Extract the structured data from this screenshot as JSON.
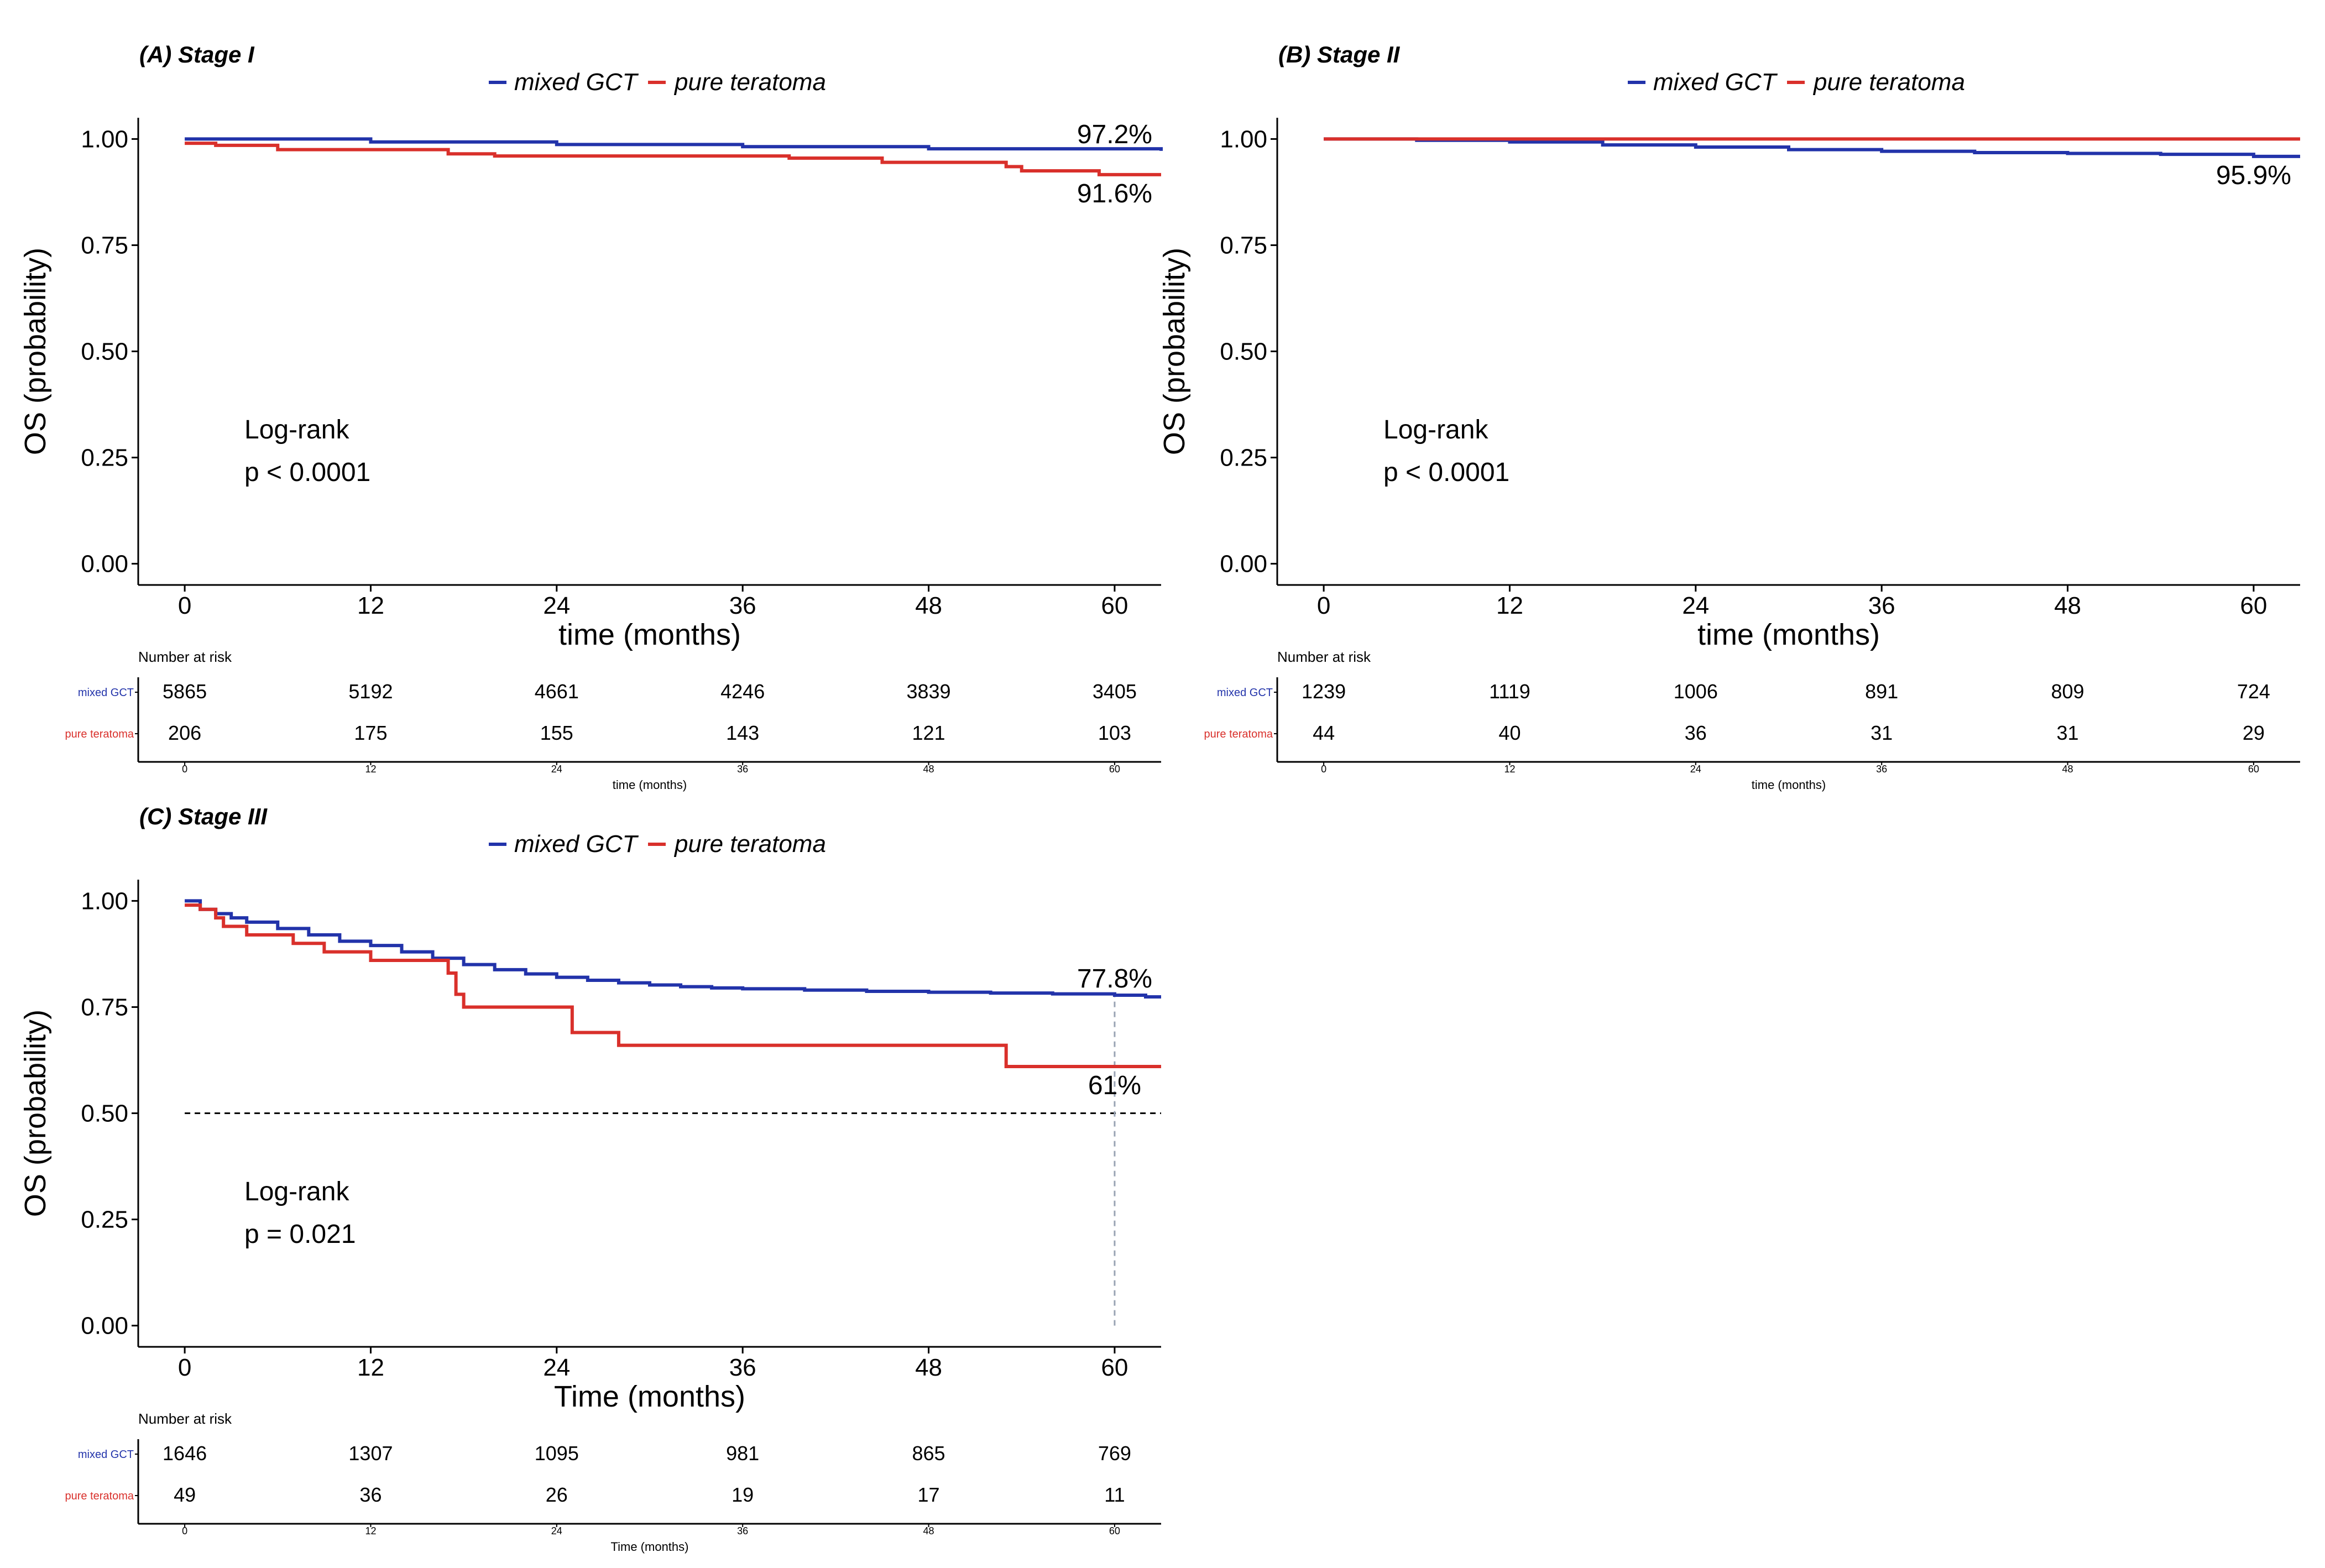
{
  "colors": {
    "mixed": "#2233aa",
    "pure": "#d9302b",
    "axis": "#000000",
    "ref": "#9aa4b4"
  },
  "chart_data": [
    {
      "id": "A",
      "type": "line",
      "subtype": "kaplan-meier",
      "title": "(A) Stage I",
      "legend": [
        "mixed GCT",
        "pure teratoma"
      ],
      "xlabel": "time (months)",
      "ylabel": "OS (probability)",
      "xlim": [
        -3,
        63
      ],
      "ylim": [
        -0.05,
        1.05
      ],
      "xticks": [
        0,
        12,
        24,
        36,
        48,
        60
      ],
      "yticks": [
        0,
        0.25,
        0.5,
        0.75,
        1.0
      ],
      "ytick_labels": [
        "0.00",
        "0.25",
        "0.50",
        "0.75",
        "1.00"
      ],
      "series": [
        {
          "name": "mixed GCT",
          "color_key": "mixed",
          "x": [
            0,
            12,
            24,
            36,
            48,
            63
          ],
          "y": [
            1.0,
            0.993,
            0.987,
            0.982,
            0.977,
            0.972
          ]
        },
        {
          "name": "pure teratoma",
          "color_key": "pure",
          "x": [
            0,
            2,
            6,
            17,
            20,
            39,
            45,
            53,
            54,
            59,
            63
          ],
          "y": [
            0.99,
            0.985,
            0.975,
            0.965,
            0.96,
            0.955,
            0.945,
            0.935,
            0.925,
            0.916,
            0.916
          ]
        }
      ],
      "end_labels": [
        {
          "text": "97.2%",
          "x": 60,
          "y": 0.972,
          "pos": "above"
        },
        {
          "text": "91.6%",
          "x": 60,
          "y": 0.916,
          "pos": "below"
        }
      ],
      "logrank_title": "Log-rank",
      "pvalue": "p < 0.0001",
      "risk_table": {
        "header": "Number at risk",
        "groups": [
          "mixed GCT",
          "pure teratoma"
        ],
        "values": [
          [
            5865,
            5192,
            4661,
            4246,
            3839,
            3405
          ],
          [
            206,
            175,
            155,
            143,
            121,
            103
          ]
        ],
        "xlabel": "time (months)"
      }
    },
    {
      "id": "B",
      "type": "line",
      "subtype": "kaplan-meier",
      "title": "(B) Stage II",
      "legend": [
        "mixed GCT",
        "pure teratoma"
      ],
      "xlabel": "time (months)",
      "ylabel": "OS (probability)",
      "xlim": [
        -3,
        63
      ],
      "ylim": [
        -0.05,
        1.05
      ],
      "xticks": [
        0,
        12,
        24,
        36,
        48,
        60
      ],
      "yticks": [
        0,
        0.25,
        0.5,
        0.75,
        1.0
      ],
      "ytick_labels": [
        "0.00",
        "0.25",
        "0.50",
        "0.75",
        "1.00"
      ],
      "series": [
        {
          "name": "mixed GCT",
          "color_key": "mixed",
          "x": [
            0,
            6,
            12,
            18,
            24,
            30,
            36,
            42,
            48,
            54,
            60,
            63
          ],
          "y": [
            1.0,
            0.997,
            0.993,
            0.986,
            0.981,
            0.975,
            0.971,
            0.968,
            0.966,
            0.964,
            0.959,
            0.959
          ]
        },
        {
          "name": "pure teratoma",
          "color_key": "pure",
          "x": [
            0,
            63
          ],
          "y": [
            1.0,
            1.0
          ]
        }
      ],
      "end_labels": [
        {
          "text": "95.9%",
          "x": 60,
          "y": 0.959,
          "pos": "below"
        }
      ],
      "logrank_title": "Log-rank",
      "pvalue": "p < 0.0001",
      "risk_table": {
        "header": "Number at risk",
        "groups": [
          "mixed GCT",
          "pure teratoma"
        ],
        "values": [
          [
            1239,
            1119,
            1006,
            891,
            809,
            724
          ],
          [
            44,
            40,
            36,
            31,
            31,
            29
          ]
        ],
        "xlabel": "time (months)"
      }
    },
    {
      "id": "C",
      "type": "line",
      "subtype": "kaplan-meier",
      "title": "(C) Stage III",
      "legend": [
        "mixed GCT",
        "pure teratoma"
      ],
      "xlabel": "Time (months)",
      "ylabel": "OS (probability)",
      "xlim": [
        -3,
        63
      ],
      "ylim": [
        -0.05,
        1.05
      ],
      "xticks": [
        0,
        12,
        24,
        36,
        48,
        60
      ],
      "yticks": [
        0,
        0.25,
        0.5,
        0.75,
        1.0
      ],
      "ytick_labels": [
        "0.00",
        "0.25",
        "0.50",
        "0.75",
        "1.00"
      ],
      "series": [
        {
          "name": "mixed GCT",
          "color_key": "mixed",
          "x": [
            0,
            1,
            2,
            3,
            4,
            6,
            8,
            10,
            12,
            14,
            16,
            18,
            20,
            22,
            24,
            26,
            28,
            30,
            32,
            34,
            36,
            40,
            44,
            48,
            52,
            56,
            60,
            62,
            63
          ],
          "y": [
            1.0,
            0.98,
            0.97,
            0.96,
            0.95,
            0.935,
            0.92,
            0.905,
            0.895,
            0.88,
            0.865,
            0.85,
            0.838,
            0.828,
            0.82,
            0.813,
            0.807,
            0.802,
            0.798,
            0.795,
            0.793,
            0.79,
            0.787,
            0.785,
            0.783,
            0.781,
            0.778,
            0.774,
            0.774
          ]
        },
        {
          "name": "pure teratoma",
          "color_key": "pure",
          "x": [
            0,
            1,
            2,
            2.5,
            4,
            7,
            9,
            12,
            17,
            17.5,
            18,
            24,
            25,
            28,
            50,
            52,
            53,
            63
          ],
          "y": [
            0.99,
            0.98,
            0.96,
            0.94,
            0.92,
            0.9,
            0.88,
            0.86,
            0.83,
            0.78,
            0.75,
            0.75,
            0.69,
            0.66,
            0.66,
            0.66,
            0.61,
            0.61
          ]
        }
      ],
      "end_labels": [
        {
          "text": "77.8%",
          "x": 60,
          "y": 0.778,
          "pos": "above"
        },
        {
          "text": "61%",
          "x": 60,
          "y": 0.61,
          "pos": "below"
        }
      ],
      "median_line": 0.5,
      "ref_vline_x": 60,
      "logrank_title": "Log-rank",
      "pvalue": "p = 0.021",
      "risk_table": {
        "header": "Number at risk",
        "groups": [
          "mixed GCT",
          "pure teratoma"
        ],
        "values": [
          [
            1646,
            1307,
            1095,
            981,
            865,
            769
          ],
          [
            49,
            36,
            26,
            19,
            17,
            11
          ]
        ],
        "xlabel": "Time (months)"
      }
    }
  ]
}
